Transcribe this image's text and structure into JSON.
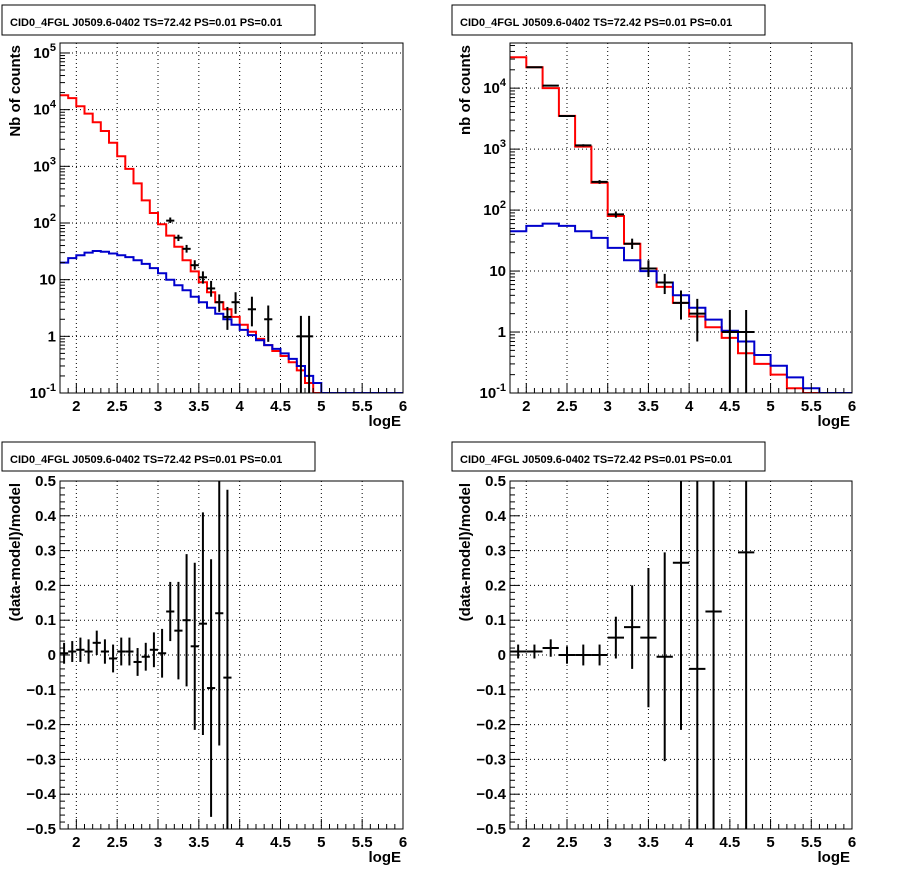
{
  "colors": {
    "frame": "#000000",
    "grid": "#000000",
    "data": "#000000",
    "model_total": "#ff0000",
    "model_source": "#0000cc",
    "background": "#ffffff"
  },
  "chart_data": [
    {
      "type": "line",
      "title": "CID0_4FGL J0509.6-0402 TS=72.42 PS=0.01 PS=0.01",
      "xlabel": "logE",
      "ylabel": "Nb of counts",
      "log_y": true,
      "grid": true,
      "xlim": [
        1.8,
        6.0
      ],
      "ylim": [
        0.1,
        150000
      ],
      "x_ticks": [
        "2",
        "2.5",
        "3",
        "3.5",
        "4",
        "4.5",
        "5",
        "5.5",
        "6"
      ],
      "y_ticks": [
        "10^-1",
        "1",
        "10",
        "10^2",
        "10^3",
        "10^4",
        "10^5"
      ],
      "bin_edges": [
        1.8,
        1.9,
        2.0,
        2.1,
        2.2,
        2.3,
        2.4,
        2.5,
        2.6,
        2.7,
        2.8,
        2.9,
        3.0,
        3.1,
        3.2,
        3.3,
        3.4,
        3.5,
        3.6,
        3.7,
        3.8,
        3.9,
        4.0,
        4.1,
        4.2,
        4.3,
        4.4,
        4.5,
        4.6,
        4.7,
        4.8,
        4.9,
        5.0,
        5.1,
        5.2,
        5.3,
        5.4,
        5.5,
        5.6,
        5.7,
        5.8,
        5.9,
        6.0
      ],
      "series": [
        {
          "role": "total_model",
          "color_key": "model_total",
          "style": "step",
          "values": [
            18000,
            16000,
            11500,
            8500,
            6000,
            4200,
            2600,
            1500,
            900,
            500,
            250,
            150,
            95,
            60,
            38,
            22,
            14,
            9,
            6,
            4,
            3,
            2.2,
            1.6,
            1.2,
            0.9,
            0.7,
            0.55,
            0.45,
            0.35,
            0.25,
            0.15,
            0.1,
            0.1,
            0.1,
            0.1,
            0.1,
            0.1,
            0.1,
            0.1,
            0.1,
            0.1,
            0.1
          ]
        },
        {
          "role": "source_model",
          "color_key": "model_source",
          "style": "step",
          "values": [
            20,
            24,
            27,
            30,
            32,
            31,
            29,
            27,
            25,
            22,
            19,
            16,
            13,
            10,
            8,
            6.5,
            5,
            4,
            3.2,
            2.5,
            2.0,
            1.6,
            1.3,
            1.05,
            0.85,
            0.7,
            0.6,
            0.5,
            0.4,
            0.3,
            0.2,
            0.15,
            0.1,
            0.1,
            0.1,
            0.1,
            0.1,
            0.1,
            0.1,
            0.1,
            0.1,
            0.1
          ]
        }
      ],
      "points": [
        {
          "x": 3.15,
          "y": 110,
          "ylo": 100,
          "yhi": 125,
          "xerr": 0.05
        },
        {
          "x": 3.25,
          "y": 55,
          "ylo": 48,
          "yhi": 62,
          "xerr": 0.05
        },
        {
          "x": 3.35,
          "y": 35,
          "ylo": 30,
          "yhi": 41,
          "xerr": 0.05
        },
        {
          "x": 3.45,
          "y": 18,
          "ylo": 15,
          "yhi": 22,
          "xerr": 0.05
        },
        {
          "x": 3.55,
          "y": 11,
          "ylo": 8.5,
          "yhi": 14,
          "xerr": 0.05
        },
        {
          "x": 3.65,
          "y": 7,
          "ylo": 5,
          "yhi": 9.5,
          "xerr": 0.05
        },
        {
          "x": 3.75,
          "y": 4,
          "ylo": 2.7,
          "yhi": 5.5,
          "xerr": 0.05
        },
        {
          "x": 3.85,
          "y": 2.2,
          "ylo": 1.3,
          "yhi": 3.3,
          "xerr": 0.05
        },
        {
          "x": 3.95,
          "y": 4,
          "ylo": 2.5,
          "yhi": 6,
          "xerr": 0.05
        },
        {
          "x": 4.15,
          "y": 3,
          "ylo": 1.5,
          "yhi": 5,
          "xerr": 0.05
        },
        {
          "x": 4.35,
          "y": 2,
          "ylo": 0.8,
          "yhi": 3.5,
          "xerr": 0.05
        },
        {
          "x": 4.75,
          "y": 1,
          "ylo": 0.1,
          "yhi": 2.3,
          "xerr": 0.05
        },
        {
          "x": 4.85,
          "y": 1,
          "ylo": 0.1,
          "yhi": 2.3,
          "xerr": 0.05
        }
      ]
    },
    {
      "type": "line",
      "title": "CID0_4FGL J0509.6-0402 TS=72.42 PS=0.01 PS=0.01",
      "xlabel": "logE",
      "ylabel": "nb of counts",
      "log_y": true,
      "grid": true,
      "xlim": [
        1.8,
        6.0
      ],
      "ylim": [
        0.1,
        55000
      ],
      "x_ticks": [
        "2",
        "2.5",
        "3",
        "3.5",
        "4",
        "4.5",
        "5",
        "5.5",
        "6"
      ],
      "y_ticks": [
        "10^-1",
        "1",
        "10",
        "10^2",
        "10^3",
        "10^4"
      ],
      "bin_edges": [
        1.8,
        2.0,
        2.2,
        2.4,
        2.6,
        2.8,
        3.0,
        3.2,
        3.4,
        3.6,
        3.8,
        4.0,
        4.2,
        4.4,
        4.6,
        4.8,
        5.0,
        5.2,
        5.4,
        5.6,
        5.8,
        6.0
      ],
      "series": [
        {
          "role": "total_model",
          "color_key": "model_total",
          "style": "step",
          "values": [
            32000,
            22000,
            10000,
            3500,
            1100,
            280,
            80,
            28,
            11,
            5.5,
            3,
            1.8,
            1.2,
            0.8,
            0.45,
            0.3,
            0.2,
            0.12,
            0.1,
            0.1,
            0.1
          ]
        },
        {
          "role": "source_model",
          "color_key": "model_source",
          "style": "step",
          "values": [
            45,
            55,
            60,
            55,
            45,
            35,
            24,
            15,
            10,
            6.5,
            4,
            2.5,
            1.6,
            1.05,
            0.7,
            0.42,
            0.28,
            0.18,
            0.12,
            0.1,
            0.1
          ]
        }
      ],
      "points": [
        {
          "x": 2.1,
          "y": 22000,
          "ylo": 21500,
          "yhi": 22500,
          "xerr": 0.1
        },
        {
          "x": 2.3,
          "y": 11000,
          "ylo": 10700,
          "yhi": 11300,
          "xerr": 0.1
        },
        {
          "x": 2.5,
          "y": 3500,
          "ylo": 3400,
          "yhi": 3600,
          "xerr": 0.1
        },
        {
          "x": 2.7,
          "y": 1150,
          "ylo": 1100,
          "yhi": 1200,
          "xerr": 0.1
        },
        {
          "x": 2.9,
          "y": 290,
          "ylo": 270,
          "yhi": 310,
          "xerr": 0.1
        },
        {
          "x": 3.1,
          "y": 85,
          "ylo": 75,
          "yhi": 95,
          "xerr": 0.1
        },
        {
          "x": 3.3,
          "y": 28,
          "ylo": 23,
          "yhi": 34,
          "xerr": 0.1
        },
        {
          "x": 3.5,
          "y": 11,
          "ylo": 8,
          "yhi": 15,
          "xerr": 0.1
        },
        {
          "x": 3.7,
          "y": 6.5,
          "ylo": 4.2,
          "yhi": 9,
          "xerr": 0.1
        },
        {
          "x": 3.9,
          "y": 3,
          "ylo": 1.6,
          "yhi": 4.8,
          "xerr": 0.1
        },
        {
          "x": 4.1,
          "y": 2,
          "ylo": 0.7,
          "yhi": 3.5,
          "xerr": 0.1
        },
        {
          "x": 4.5,
          "y": 1,
          "ylo": 0.1,
          "yhi": 2.3,
          "xerr": 0.1
        },
        {
          "x": 4.7,
          "y": 1,
          "ylo": 0.1,
          "yhi": 2.3,
          "xerr": 0.1
        }
      ]
    },
    {
      "type": "scatter",
      "title": "CID0_4FGL J0509.6-0402 TS=72.42 PS=0.01 PS=0.01",
      "xlabel": "logE",
      "ylabel": "(data-model)/model",
      "log_y": false,
      "grid": true,
      "xlim": [
        1.8,
        6.0
      ],
      "ylim": [
        -0.5,
        0.5
      ],
      "x_ticks": [
        "2",
        "2.5",
        "3",
        "3.5",
        "4",
        "4.5",
        "5",
        "5.5",
        "6"
      ],
      "y_ticks": [
        "-0.5",
        "-0.4",
        "-0.3",
        "-0.2",
        "-0.1",
        "0",
        "0.1",
        "0.2",
        "0.3",
        "0.4",
        "0.5"
      ],
      "points": [
        {
          "x": 1.85,
          "y": 0.005,
          "err": 0.03,
          "xerr": 0.05
        },
        {
          "x": 1.95,
          "y": 0.01,
          "err": 0.03,
          "xerr": 0.05
        },
        {
          "x": 2.05,
          "y": 0.015,
          "err": 0.035,
          "xerr": 0.05
        },
        {
          "x": 2.15,
          "y": 0.01,
          "err": 0.035,
          "xerr": 0.05
        },
        {
          "x": 2.25,
          "y": 0.035,
          "err": 0.035,
          "xerr": 0.05
        },
        {
          "x": 2.35,
          "y": 0.01,
          "err": 0.035,
          "xerr": 0.05
        },
        {
          "x": 2.45,
          "y": -0.01,
          "err": 0.04,
          "xerr": 0.05
        },
        {
          "x": 2.55,
          "y": 0.01,
          "err": 0.04,
          "xerr": 0.05
        },
        {
          "x": 2.65,
          "y": 0.01,
          "err": 0.04,
          "xerr": 0.05
        },
        {
          "x": 2.75,
          "y": -0.02,
          "err": 0.04,
          "xerr": 0.05
        },
        {
          "x": 2.85,
          "y": -0.005,
          "err": 0.04,
          "xerr": 0.05
        },
        {
          "x": 2.95,
          "y": 0.015,
          "err": 0.05,
          "xerr": 0.05
        },
        {
          "x": 3.05,
          "y": 0.005,
          "err": 0.07,
          "xerr": 0.05
        },
        {
          "x": 3.15,
          "y": 0.125,
          "err": 0.085,
          "xerr": 0.05
        },
        {
          "x": 3.25,
          "y": 0.07,
          "err": 0.14,
          "xerr": 0.05
        },
        {
          "x": 3.35,
          "y": 0.1,
          "err": 0.19,
          "xerr": 0.05
        },
        {
          "x": 3.45,
          "y": 0.025,
          "err": 0.24,
          "xerr": 0.05
        },
        {
          "x": 3.55,
          "y": 0.09,
          "err": 0.32,
          "xerr": 0.05
        },
        {
          "x": 3.65,
          "y": -0.095,
          "err": 0.37,
          "xerr": 0.05
        },
        {
          "x": 3.75,
          "y": 0.12,
          "err": 0.38,
          "xerr": 0.05
        },
        {
          "x": 3.85,
          "y": -0.065,
          "err": 0.54,
          "xerr": 0.05
        }
      ]
    },
    {
      "type": "scatter",
      "title": "CID0_4FGL J0509.6-0402 TS=72.42 PS=0.01 PS=0.01",
      "xlabel": "logE",
      "ylabel": "(data-model)/model",
      "log_y": false,
      "grid": true,
      "xlim": [
        1.8,
        6.0
      ],
      "ylim": [
        -0.5,
        0.5
      ],
      "x_ticks": [
        "2",
        "2.5",
        "3",
        "3.5",
        "4",
        "4.5",
        "5",
        "5.5",
        "6"
      ],
      "y_ticks": [
        "-0.5",
        "-0.4",
        "-0.3",
        "-0.2",
        "-0.1",
        "0",
        "0.1",
        "0.2",
        "0.3",
        "0.4",
        "0.5"
      ],
      "points": [
        {
          "x": 1.9,
          "y": 0.01,
          "err": 0.02,
          "xerr": 0.1
        },
        {
          "x": 2.1,
          "y": 0.01,
          "err": 0.02,
          "xerr": 0.1
        },
        {
          "x": 2.3,
          "y": 0.02,
          "err": 0.025,
          "xerr": 0.1
        },
        {
          "x": 2.5,
          "y": 0.0,
          "err": 0.025,
          "xerr": 0.1
        },
        {
          "x": 2.7,
          "y": 0.0,
          "err": 0.03,
          "xerr": 0.1
        },
        {
          "x": 2.9,
          "y": 0.0,
          "err": 0.03,
          "xerr": 0.1
        },
        {
          "x": 3.1,
          "y": 0.05,
          "err": 0.06,
          "xerr": 0.1
        },
        {
          "x": 3.3,
          "y": 0.08,
          "err": 0.12,
          "xerr": 0.1
        },
        {
          "x": 3.5,
          "y": 0.05,
          "err": 0.2,
          "xerr": 0.1
        },
        {
          "x": 3.7,
          "y": -0.005,
          "err": 0.3,
          "xerr": 0.1
        },
        {
          "x": 3.9,
          "y": 0.265,
          "err": 0.48,
          "xerr": 0.1
        },
        {
          "x": 4.1,
          "y": -0.04,
          "err": 0.6,
          "xerr": 0.1
        },
        {
          "x": 4.3,
          "y": 0.125,
          "err": 0.7,
          "xerr": 0.1
        },
        {
          "x": 4.7,
          "y": 0.295,
          "err": 0.9,
          "xerr": 0.1
        }
      ]
    }
  ]
}
